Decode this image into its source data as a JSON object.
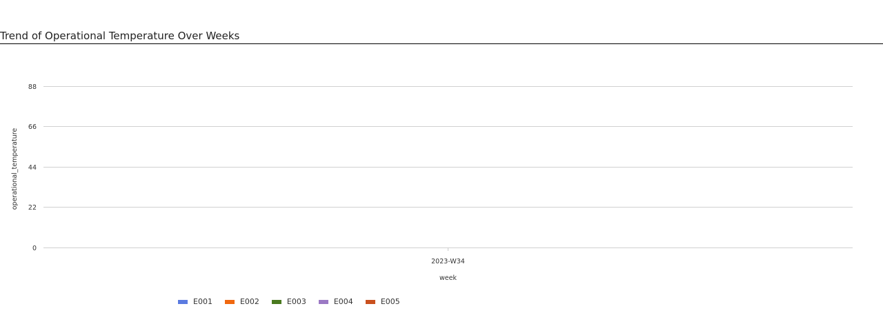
{
  "chart_data": {
    "type": "bar",
    "title": "Trend of Operational Temperature Over Weeks",
    "xlabel": "week",
    "ylabel": "operational_temperature",
    "categories": [
      "2023-W34"
    ],
    "y_ticks": [
      "0",
      "22",
      "44",
      "66",
      "88"
    ],
    "ylim": [
      0,
      99
    ],
    "grid": true,
    "legend_position": "bottom",
    "series": [
      {
        "name": "E001",
        "color": "#5b7be0",
        "values": [
          0
        ]
      },
      {
        "name": "E002",
        "color": "#f0680f",
        "values": [
          0
        ]
      },
      {
        "name": "E003",
        "color": "#4a7a1f",
        "values": [
          0
        ]
      },
      {
        "name": "E004",
        "color": "#9b79c4",
        "values": [
          0
        ]
      },
      {
        "name": "E005",
        "color": "#c9501e",
        "values": [
          0
        ]
      }
    ]
  }
}
